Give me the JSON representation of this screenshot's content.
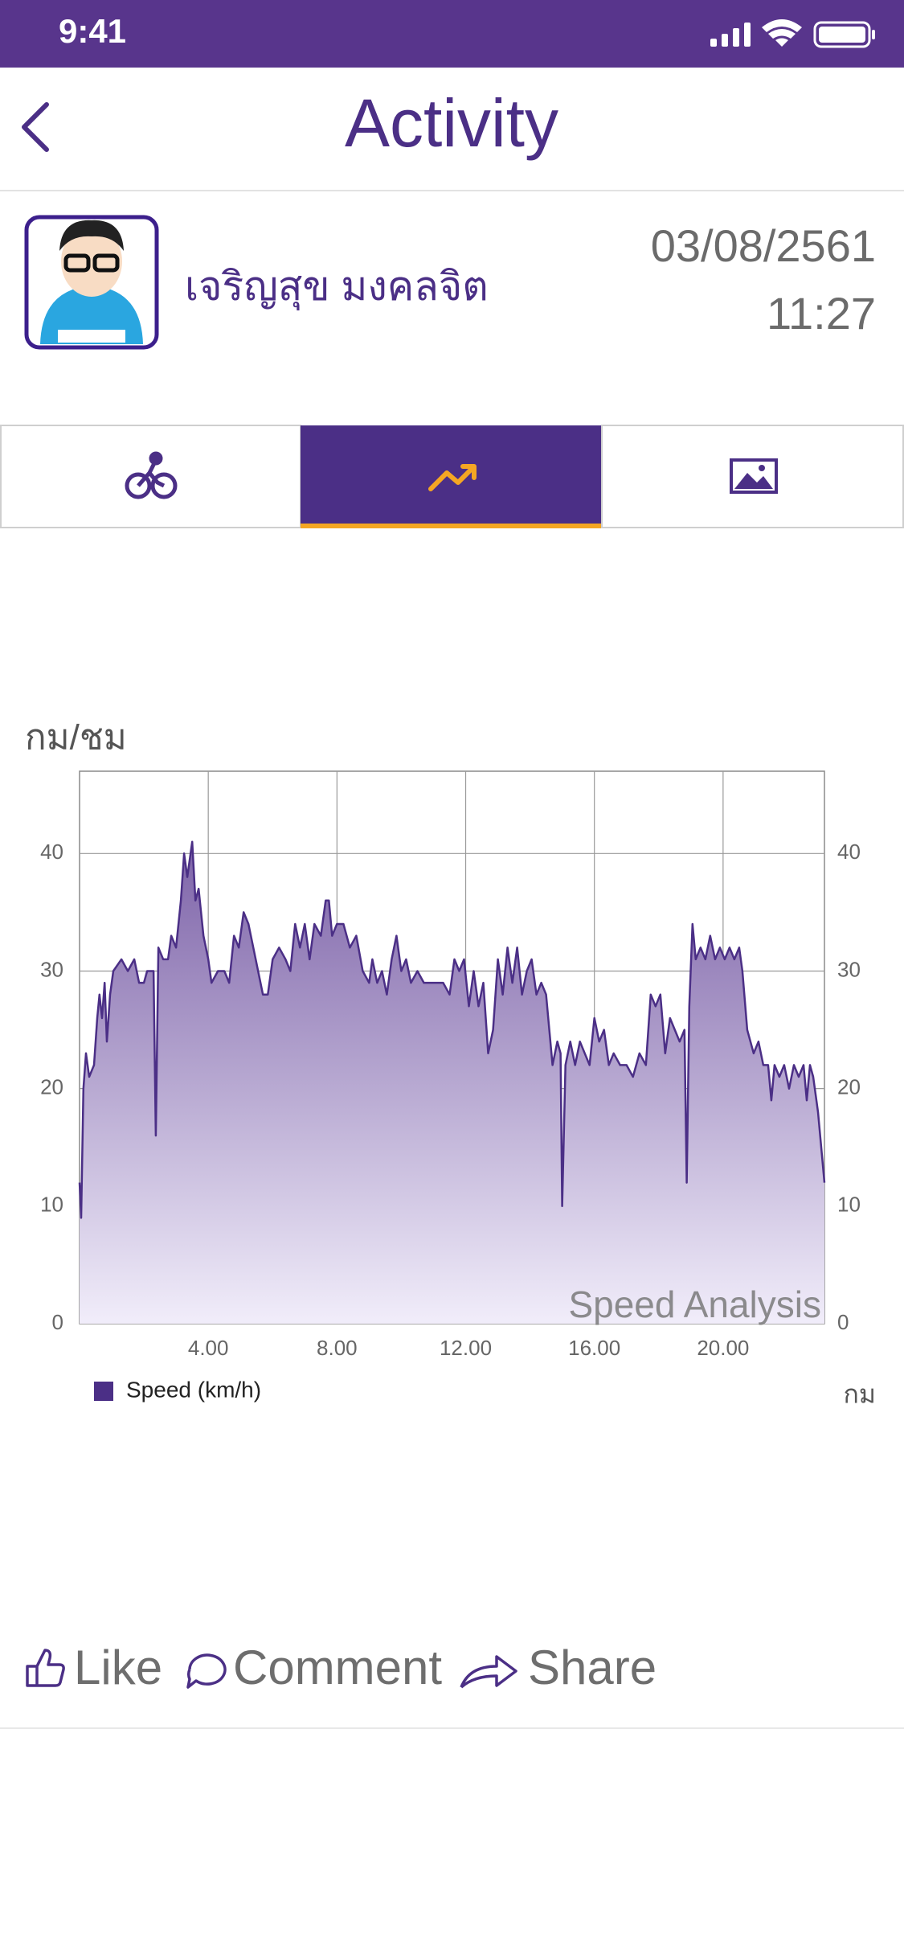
{
  "status_bar": {
    "time": "9:41"
  },
  "header": {
    "title": "Activity"
  },
  "post": {
    "author": "เจริญสุข มงคลจิต",
    "date": "03/08/2561",
    "time": "11:27"
  },
  "actions": [
    "Like",
    "Comment",
    "Share"
  ],
  "chart_data": {
    "type": "area",
    "y_label": "กม/ชม",
    "x_label": "กม",
    "annotation": "Speed Analysis",
    "grid": true,
    "legend": "bottom-left",
    "xlim": [
      0,
      23.15
    ],
    "ylim": [
      0,
      47
    ],
    "xticks": [
      {
        "value": 4,
        "label": "4.00"
      },
      {
        "value": 8,
        "label": "8.00"
      },
      {
        "value": 12,
        "label": "12.00"
      },
      {
        "value": 16,
        "label": "16.00"
      },
      {
        "value": 20,
        "label": "20.00"
      }
    ],
    "yticks": [
      0,
      10,
      20,
      30,
      40
    ],
    "x": [
      0,
      0.05,
      0.12,
      0.2,
      0.3,
      0.45,
      0.55,
      0.62,
      0.7,
      0.78,
      0.85,
      0.95,
      1.05,
      1.3,
      1.5,
      1.7,
      1.85,
      2.0,
      2.1,
      2.3,
      2.37,
      2.45,
      2.6,
      2.75,
      2.85,
      3.0,
      3.15,
      3.25,
      3.35,
      3.5,
      3.6,
      3.7,
      3.85,
      4.0,
      4.1,
      4.3,
      4.5,
      4.65,
      4.8,
      4.95,
      5.1,
      5.25,
      5.4,
      5.55,
      5.7,
      5.85,
      6.0,
      6.2,
      6.4,
      6.55,
      6.7,
      6.85,
      7.0,
      7.15,
      7.3,
      7.5,
      7.65,
      7.75,
      7.85,
      8.0,
      8.2,
      8.4,
      8.6,
      8.8,
      9.0,
      9.1,
      9.25,
      9.4,
      9.55,
      9.7,
      9.85,
      10.0,
      10.15,
      10.3,
      10.5,
      10.7,
      11.0,
      11.3,
      11.5,
      11.65,
      11.8,
      11.95,
      12.1,
      12.25,
      12.4,
      12.55,
      12.7,
      12.85,
      13.0,
      13.15,
      13.3,
      13.45,
      13.6,
      13.75,
      13.9,
      14.05,
      14.2,
      14.35,
      14.5,
      14.6,
      14.7,
      14.85,
      14.95,
      15.0,
      15.1,
      15.25,
      15.4,
      15.55,
      15.7,
      15.85,
      16.0,
      16.15,
      16.3,
      16.45,
      16.6,
      16.8,
      17.0,
      17.2,
      17.4,
      17.6,
      17.75,
      17.9,
      18.05,
      18.2,
      18.35,
      18.5,
      18.65,
      18.8,
      18.87,
      18.95,
      19.05,
      19.15,
      19.3,
      19.45,
      19.6,
      19.75,
      19.9,
      20.05,
      20.2,
      20.35,
      20.5,
      20.6,
      20.75,
      20.95,
      21.1,
      21.25,
      21.4,
      21.5,
      21.6,
      21.75,
      21.9,
      22.05,
      22.2,
      22.35,
      22.5,
      22.6,
      22.7,
      22.8,
      22.95,
      23.15
    ],
    "series": [
      {
        "name": "Speed (km/h)",
        "color": "#4b2f86",
        "values": [
          12,
          9,
          20,
          23,
          21,
          22,
          26,
          28,
          26,
          29,
          24,
          28,
          30,
          31,
          30,
          31,
          29,
          29,
          30,
          30,
          16,
          32,
          31,
          31,
          33,
          32,
          36,
          40,
          38,
          41,
          36,
          37,
          33,
          31,
          29,
          30,
          30,
          29,
          33,
          32,
          35,
          34,
          32,
          30,
          28,
          28,
          31,
          32,
          31,
          30,
          34,
          32,
          34,
          31,
          34,
          33,
          36,
          36,
          33,
          34,
          34,
          32,
          33,
          30,
          29,
          31,
          29,
          30,
          28,
          31,
          33,
          30,
          31,
          29,
          30,
          29,
          29,
          29,
          28,
          31,
          30,
          31,
          27,
          30,
          27,
          29,
          23,
          25,
          31,
          28,
          32,
          29,
          32,
          28,
          30,
          31,
          28,
          29,
          28,
          25,
          22,
          24,
          23,
          10,
          22,
          24,
          22,
          24,
          23,
          22,
          26,
          24,
          25,
          22,
          23,
          22,
          22,
          21,
          23,
          22,
          28,
          27,
          28,
          23,
          26,
          25,
          24,
          25,
          12,
          27,
          34,
          31,
          32,
          31,
          33,
          31,
          32,
          31,
          32,
          31,
          32,
          30,
          25,
          23,
          24,
          22,
          22,
          19,
          22,
          21,
          22,
          20,
          22,
          21,
          22,
          19,
          22,
          21,
          18,
          12
        ]
      }
    ]
  }
}
